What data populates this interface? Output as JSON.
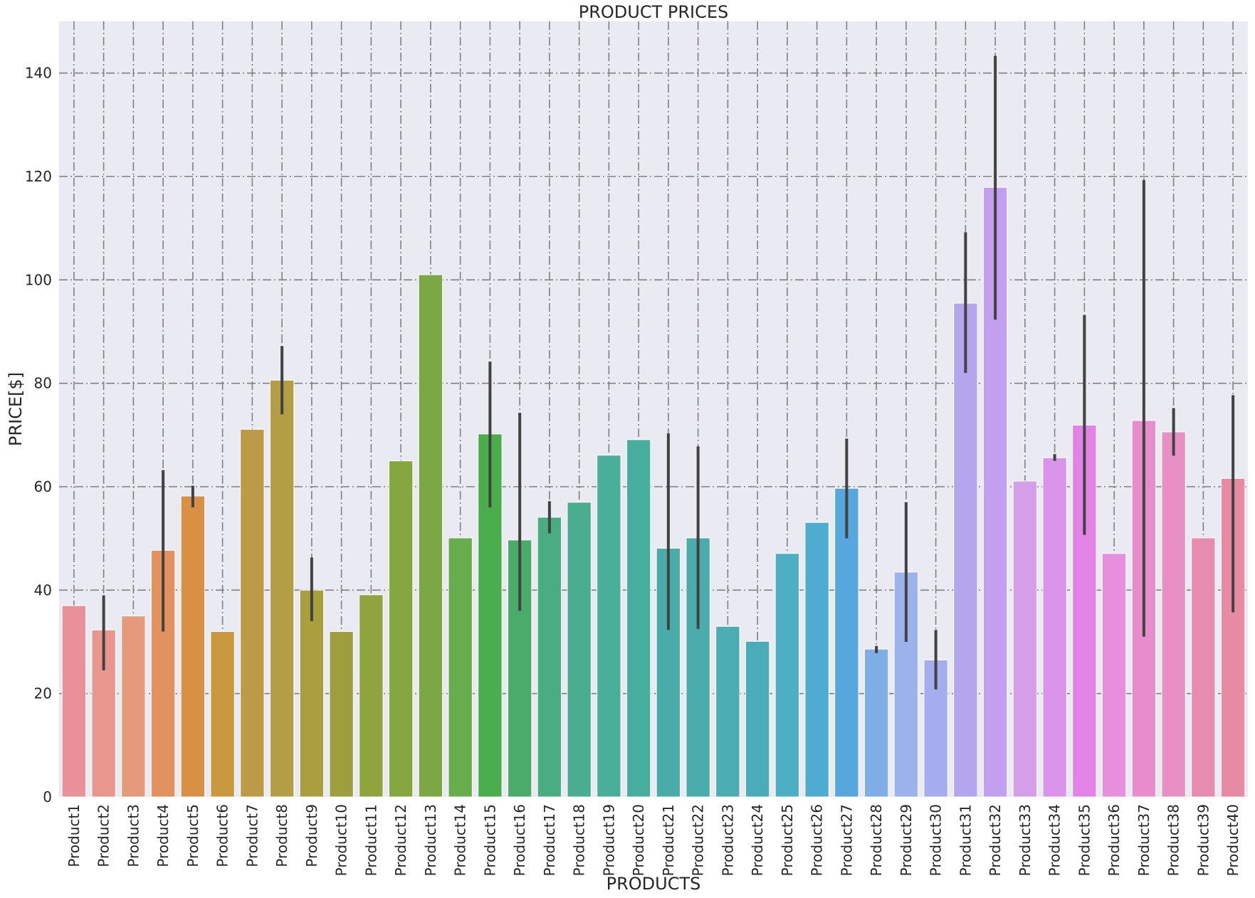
{
  "chart_data": {
    "type": "bar",
    "title": "PRODUCT PRICES",
    "xlabel": "PRODUCTS",
    "ylabel": "PRICE[$]",
    "ylim": [
      0,
      150
    ],
    "yticks": [
      0,
      20,
      40,
      60,
      80,
      100,
      120,
      140
    ],
    "grid": true,
    "legend": "none",
    "background_color": "#eaeaf2",
    "grid_color": "#808080",
    "errorbar_color": "#424242",
    "categories": [
      "Product1",
      "Product2",
      "Product3",
      "Product4",
      "Product5",
      "Product6",
      "Product7",
      "Product8",
      "Product9",
      "Product10",
      "Product11",
      "Product12",
      "Product13",
      "Product14",
      "Product15",
      "Product16",
      "Product17",
      "Product18",
      "Product19",
      "Product20",
      "Product21",
      "Product22",
      "Product23",
      "Product24",
      "Product25",
      "Product26",
      "Product27",
      "Product28",
      "Product29",
      "Product30",
      "Product31",
      "Product32",
      "Product33",
      "Product34",
      "Product35",
      "Product36",
      "Product37",
      "Product38",
      "Product39",
      "Product40"
    ],
    "values": [
      37,
      32.3,
      35,
      47.7,
      58.2,
      32,
      71.1,
      80.6,
      40,
      32,
      39.1,
      65,
      101,
      50.1,
      70.2,
      49.7,
      54.1,
      57,
      66.1,
      69.1,
      48.1,
      50.1,
      33,
      30.1,
      47.1,
      53.1,
      59.7,
      28.6,
      43.5,
      26.5,
      95.5,
      117.9,
      61.1,
      65.6,
      71.9,
      47.1,
      72.8,
      70.6,
      50.1,
      61.6
    ],
    "errors": [
      null,
      [
        24.5,
        39
      ],
      null,
      [
        32,
        63.2
      ],
      [
        56,
        60.2
      ],
      null,
      null,
      [
        74,
        87.2
      ],
      [
        34,
        46.3
      ],
      null,
      null,
      null,
      null,
      null,
      [
        56,
        84.2
      ],
      [
        36,
        74.3
      ],
      [
        51,
        57.2
      ],
      null,
      null,
      null,
      [
        32.3,
        70.3
      ],
      [
        32.5,
        67.8
      ],
      null,
      null,
      null,
      null,
      [
        50,
        69.3
      ],
      [
        27.8,
        29.2
      ],
      [
        30,
        57
      ],
      [
        20.8,
        32.3
      ],
      [
        82,
        109.2
      ],
      [
        92.3,
        143.3
      ],
      null,
      [
        65,
        66.3
      ],
      [
        50.7,
        93.2
      ],
      null,
      [
        31,
        119.3
      ],
      [
        66,
        75.2
      ],
      null,
      [
        35.7,
        77.7
      ]
    ],
    "colors": [
      "#e8919b",
      "#e8968e",
      "#e59a7c",
      "#e3925f",
      "#d89044",
      "#c9983f",
      "#bc9a48",
      "#b39e45",
      "#a99f3f",
      "#9d9f3f",
      "#8fa33e",
      "#86a63f",
      "#7ba844",
      "#67ad4e",
      "#49ae4b",
      "#4bab6a",
      "#4aad82",
      "#4aad90",
      "#4aaf9a",
      "#46ad9f",
      "#49aca8",
      "#4aacab",
      "#4badb2",
      "#4aacb9",
      "#4daec4",
      "#50abd0",
      "#55a7dd",
      "#7eaee5",
      "#9bb2ec",
      "#a5adee",
      "#b3a6ee",
      "#c3a0ef",
      "#d49ee9",
      "#da95ea",
      "#e383e7",
      "#e68fde",
      "#e88dcb",
      "#e890c6",
      "#e88bb0",
      "#e78aa4"
    ]
  }
}
